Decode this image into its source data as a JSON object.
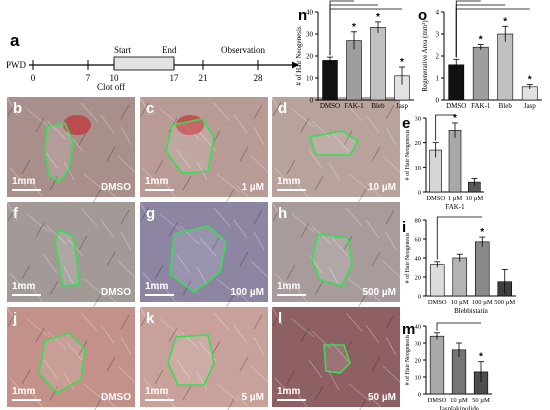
{
  "timeline": {
    "panel": "a",
    "axis_label": "PWD",
    "ticks": [
      "0",
      "7",
      "10",
      "17",
      "21",
      "28"
    ],
    "start_label": "Start",
    "end_label": "End",
    "observation_label": "Observation",
    "clot_label": "Clot off"
  },
  "photos": [
    {
      "panel": "b",
      "scale": "1mm",
      "cond": "DMSO",
      "tone": "#a98f8b"
    },
    {
      "panel": "c",
      "scale": "1mm",
      "cond": "1 µM",
      "tone": "#b99b96"
    },
    {
      "panel": "d",
      "scale": "1mm",
      "cond": "10 µM",
      "tone": "#b7a29c"
    },
    {
      "panel": "f",
      "scale": "1mm",
      "cond": "DMSO",
      "tone": "#a39a98"
    },
    {
      "panel": "g",
      "scale": "1mm",
      "cond": "100 µM",
      "tone": "#8d85a2"
    },
    {
      "panel": "h",
      "scale": "1mm",
      "cond": "500 µM",
      "tone": "#a89b9b"
    },
    {
      "panel": "j",
      "scale": "1mm",
      "cond": "DMSO",
      "tone": "#c29189"
    },
    {
      "panel": "k",
      "scale": "1mm",
      "cond": "5 µM",
      "tone": "#c7a19a"
    },
    {
      "panel": "l",
      "scale": "1mm",
      "cond": "50 µM",
      "tone": "#8e5f63"
    }
  ],
  "chart_data": [
    {
      "panel": "n",
      "type": "bar",
      "ylabel": "# of Hair Neogenesis",
      "categories": [
        "DMSO",
        "FAK-1",
        "Bleb",
        "Jasp"
      ],
      "values": [
        18,
        27,
        33,
        11
      ],
      "errors": [
        1.5,
        4,
        2.5,
        4
      ],
      "colors": [
        "#111111",
        "#9e9e9e",
        "#c0c0c0",
        "#e2e2e2"
      ],
      "ylim": [
        0,
        40
      ],
      "yticks": [
        0,
        10,
        20,
        30,
        40
      ],
      "sig": [
        "",
        "*",
        "*",
        "*"
      ]
    },
    {
      "panel": "o",
      "type": "bar",
      "ylabel": "Regenerative Area (mm²)",
      "categories": [
        "DMSO",
        "FAK-1",
        "Bleb",
        "Jasp"
      ],
      "values": [
        1.6,
        2.4,
        3.0,
        0.6
      ],
      "errors": [
        0.25,
        0.12,
        0.35,
        0.1
      ],
      "colors": [
        "#111111",
        "#9e9e9e",
        "#c0c0c0",
        "#e2e2e2"
      ],
      "ylim": [
        0,
        4
      ],
      "yticks": [
        0,
        1,
        2,
        3,
        4
      ],
      "sig": [
        "",
        "*",
        "*",
        "*"
      ]
    },
    {
      "panel": "e",
      "type": "bar",
      "ylabel": "# of Hair Neogenesis",
      "xlabel": "FAK-1",
      "categories": [
        "DMSO",
        "1 µM",
        "10 µM"
      ],
      "values": [
        17,
        25,
        4
      ],
      "errors": [
        3,
        3,
        1.5
      ],
      "colors": [
        "#d6d6d6",
        "#a8a8a8",
        "#595959"
      ],
      "ylim": [
        0,
        30
      ],
      "yticks": [
        0,
        10,
        20,
        30
      ],
      "sig": [
        "",
        "*",
        ""
      ]
    },
    {
      "panel": "i",
      "type": "bar",
      "ylabel": "# of Hair Neogenesis",
      "xlabel": "Blebbistatin",
      "categories": [
        "DMSO",
        "10 µM",
        "100 µM",
        "500 µM"
      ],
      "values": [
        33,
        40,
        57,
        15
      ],
      "errors": [
        3,
        4,
        5,
        13
      ],
      "colors": [
        "#dcdcdc",
        "#b4b4b4",
        "#8a8a8a",
        "#3f3f3f"
      ],
      "ylim": [
        0,
        80
      ],
      "yticks": [
        0,
        20,
        40,
        60,
        80
      ],
      "sig": [
        "",
        "",
        "*",
        ""
      ]
    },
    {
      "panel": "m",
      "type": "bar",
      "ylabel": "# of Hair Neogenesis",
      "xlabel": "Jasplakinolide",
      "categories": [
        "DMSO",
        "10 µM",
        "50 µM"
      ],
      "values": [
        34,
        26,
        13
      ],
      "errors": [
        2,
        4,
        6
      ],
      "colors": [
        "#a9a9a9",
        "#767676",
        "#4d4d4d"
      ],
      "ylim": [
        0,
        40
      ],
      "yticks": [
        0,
        10,
        20,
        30,
        40
      ],
      "sig": [
        "",
        "",
        "*"
      ]
    }
  ]
}
